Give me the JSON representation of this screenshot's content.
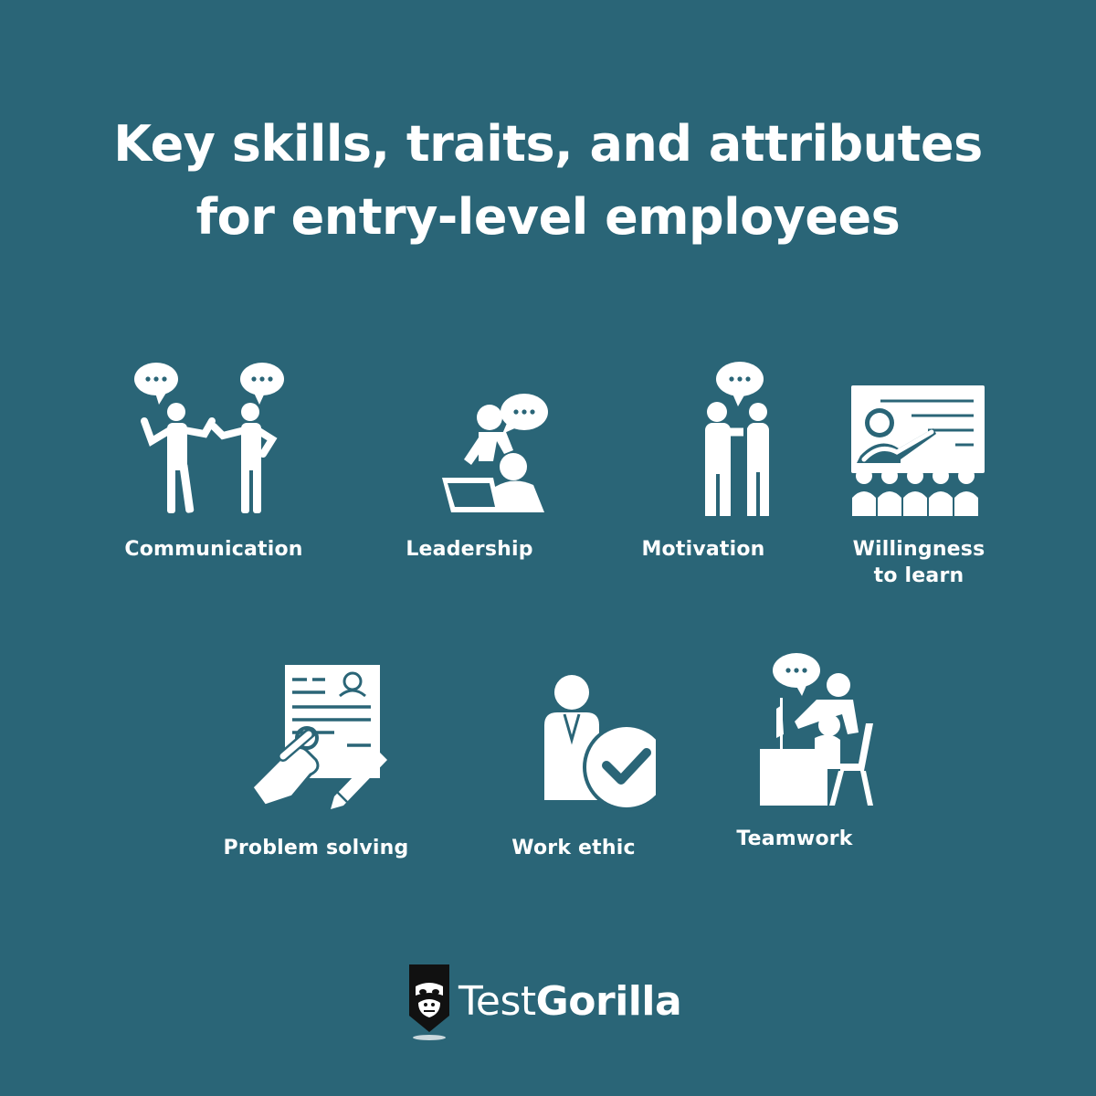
{
  "title": {
    "line1": "Key skills, traits, and attributes",
    "line2": "for entry-level employees"
  },
  "skills": [
    {
      "label": "Communication",
      "icon": "communication-icon"
    },
    {
      "label": "Leadership",
      "icon": "leadership-icon"
    },
    {
      "label": "Motivation",
      "icon": "motivation-icon"
    },
    {
      "label_line1": "Willingness",
      "label_line2": "to learn",
      "icon": "willingness-to-learn-icon"
    },
    {
      "label": "Problem solving",
      "icon": "problem-solving-icon"
    },
    {
      "label": "Work ethic",
      "icon": "work-ethic-icon"
    },
    {
      "label": "Teamwork",
      "icon": "teamwork-icon"
    }
  ],
  "brand": {
    "name_light": "Test",
    "name_bold": "Gorilla",
    "logo_icon": "gorilla-logo-icon"
  },
  "colors": {
    "background": "#2a6577",
    "foreground": "#ffffff"
  }
}
